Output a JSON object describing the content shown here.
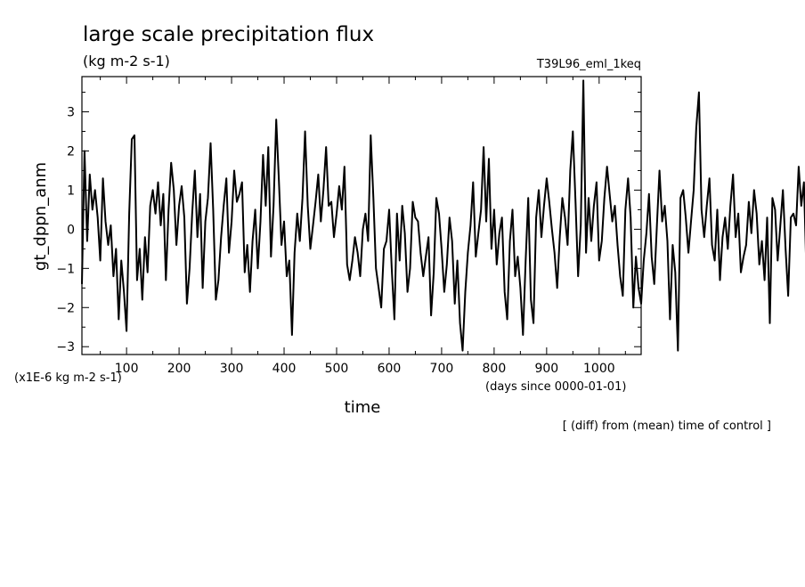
{
  "chart_data": {
    "type": "line",
    "title": "large scale precipitation flux",
    "subtitle": "(kg m-2 s-1)",
    "run_label": "T39L96_eml_1keq",
    "ylabel": "gt_dppn_anm",
    "xlabel": "time",
    "y_scale_note": "(x1E-6 kg m-2 s-1)",
    "x_unit_note": "(days since 0000-01-01)",
    "footnote": "[ (diff) from (mean) time of control ]",
    "grid": false,
    "legend": "none",
    "xlim": [
      15,
      1080
    ],
    "ylim": [
      -3.2,
      3.9
    ],
    "x_ticks": [
      100,
      200,
      300,
      400,
      500,
      600,
      700,
      800,
      900,
      1000
    ],
    "y_ticks": [
      -3,
      -2,
      -1,
      0,
      1,
      2,
      3
    ],
    "series": [
      {
        "x_start": 15,
        "x_step": 5,
        "values": [
          -1.4,
          2.0,
          -0.3,
          1.4,
          0.5,
          1.0,
          0.3,
          -0.8,
          1.3,
          0.2,
          -0.4,
          0.1,
          -1.2,
          -0.5,
          -2.3,
          -0.8,
          -1.6,
          -2.6,
          0.4,
          2.3,
          2.4,
          -1.3,
          -0.5,
          -1.8,
          -0.2,
          -1.1,
          0.6,
          1.0,
          0.4,
          1.2,
          0.1,
          0.9,
          -1.3,
          0.5,
          1.7,
          1.0,
          -0.4,
          0.6,
          1.1,
          0.3,
          -1.9,
          -1.0,
          0.4,
          1.5,
          -0.2,
          0.9,
          -1.5,
          0.2,
          0.8,
          2.2,
          0.5,
          -1.8,
          -1.3,
          -0.2,
          0.6,
          1.3,
          -0.6,
          0.2,
          1.5,
          0.7,
          0.9,
          1.2,
          -1.1,
          -0.4,
          -1.6,
          -0.3,
          0.5,
          -1.0,
          0.2,
          1.9,
          0.6,
          2.1,
          -0.7,
          0.6,
          2.8,
          1.3,
          -0.4,
          0.2,
          -1.2,
          -0.8,
          -2.7,
          -0.6,
          0.4,
          -0.3,
          0.8,
          2.5,
          0.6,
          -0.5,
          0.1,
          0.7,
          1.4,
          0.2,
          1.0,
          2.1,
          0.6,
          0.7,
          -0.2,
          0.4,
          1.1,
          0.5,
          1.6,
          -0.9,
          -1.3,
          -0.8,
          -0.2,
          -0.6,
          -1.2,
          0.0,
          0.4,
          -0.3,
          2.4,
          0.8,
          -1.0,
          -1.5,
          -2.0,
          -0.5,
          -0.3,
          0.5,
          -1.0,
          -2.3,
          0.4,
          -0.8,
          0.6,
          -0.1,
          -1.6,
          -1.0,
          0.7,
          0.3,
          0.2,
          -0.6,
          -1.2,
          -0.7,
          -0.2,
          -2.2,
          -1.1,
          0.8,
          0.4,
          -0.5,
          -1.6,
          -0.9,
          0.3,
          -0.3,
          -1.9,
          -0.8,
          -2.4,
          -3.1,
          -1.6,
          -0.6,
          0.1,
          1.2,
          -0.7,
          -0.1,
          0.5,
          2.1,
          0.2,
          1.8,
          -0.5,
          0.5,
          -0.9,
          -0.1,
          0.3,
          -1.6,
          -2.3,
          -0.3,
          0.5,
          -1.2,
          -0.7,
          -1.5,
          -2.7,
          -0.8,
          0.8,
          -1.8,
          -2.4,
          0.3,
          1.0,
          -0.2,
          0.6,
          1.3,
          0.7,
          0.0,
          -0.6,
          -1.5,
          -0.2,
          0.8,
          0.3,
          -0.4,
          1.5,
          2.5,
          0.7,
          -1.2,
          0.1,
          3.8,
          -0.6,
          0.8,
          -0.3,
          0.6,
          1.2,
          -0.8,
          -0.3,
          0.8,
          1.6,
          0.9,
          0.2,
          0.6,
          -0.4,
          -1.2,
          -1.7,
          0.5,
          1.3,
          0.3,
          -2.0,
          -0.7,
          -1.5,
          -1.9,
          -0.8,
          -0.1,
          0.9,
          -0.7,
          -1.4,
          0.1,
          1.5,
          0.2,
          0.6,
          -0.3,
          -2.3,
          -0.4,
          -1.1,
          -3.1,
          0.8,
          1.0,
          0.3,
          -0.6,
          0.2,
          1.0,
          2.6,
          3.5,
          0.5,
          -0.2,
          0.6,
          1.3,
          -0.4,
          -0.8,
          0.5,
          -1.3,
          -0.2,
          0.3,
          -0.5,
          0.6,
          1.4,
          -0.2,
          0.4,
          -1.1,
          -0.7,
          -0.4,
          0.7,
          -0.1,
          1.0,
          0.4,
          -0.9,
          -0.3,
          -1.3,
          0.3,
          -2.4,
          0.8,
          0.5,
          -0.8,
          0.1,
          1.0,
          -0.5,
          -1.7,
          0.3,
          0.4,
          0.1,
          1.6,
          0.6,
          1.2,
          -1.2,
          -2.5,
          -0.4,
          0.3,
          1.1,
          1.7,
          2.0,
          0.4,
          -0.2,
          1.1,
          0.6,
          2.1,
          3.9,
          0.8,
          -0.7,
          1.9,
          -0.4,
          1.5,
          2.1,
          0.5,
          -1.9,
          -0.4,
          0.9,
          2.9,
          3.2,
          0.1,
          -1.4,
          0.2,
          0.6,
          -1.0,
          -1.3,
          -0.6,
          -1.4
        ]
      }
    ]
  }
}
